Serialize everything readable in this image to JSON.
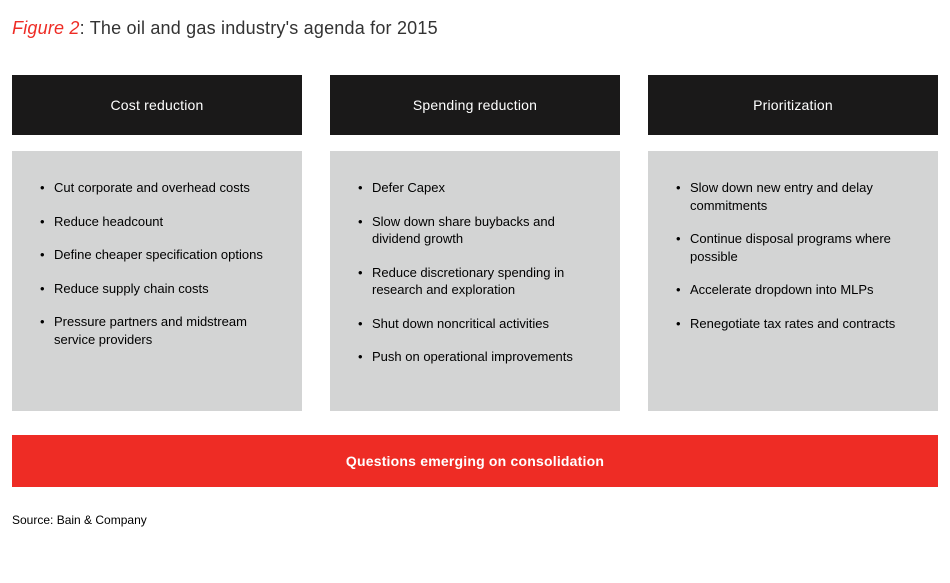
{
  "colors": {
    "accent_red": "#ee2c25",
    "header_bg": "#1a1919",
    "header_text": "#ffffff",
    "body_bg": "#d3d4d4",
    "banner_bg": "#ee2c25",
    "banner_text": "#ffffff",
    "title_text": "#333333",
    "page_bg": "#ffffff"
  },
  "figure": {
    "label": "Figure 2",
    "separator": ": ",
    "title": "The oil and gas industry's agenda for 2015"
  },
  "columns": [
    {
      "header": "Cost reduction",
      "items": [
        "Cut corporate and overhead costs",
        "Reduce headcount",
        "Define cheaper specification options",
        "Reduce supply chain costs",
        "Pressure partners and midstream service providers"
      ]
    },
    {
      "header": "Spending reduction",
      "items": [
        "Defer Capex",
        "Slow down share buybacks and dividend growth",
        "Reduce discretionary spending in research and exploration",
        "Shut down noncritical activities",
        "Push on operational improvements"
      ]
    },
    {
      "header": "Prioritization",
      "items": [
        "Slow down new entry and delay commitments",
        "Continue disposal programs where possible",
        "Accelerate dropdown into MLPs",
        "Renegotiate tax rates and contracts"
      ]
    }
  ],
  "banner": "Questions emerging on consolidation",
  "source": "Source: Bain & Company"
}
